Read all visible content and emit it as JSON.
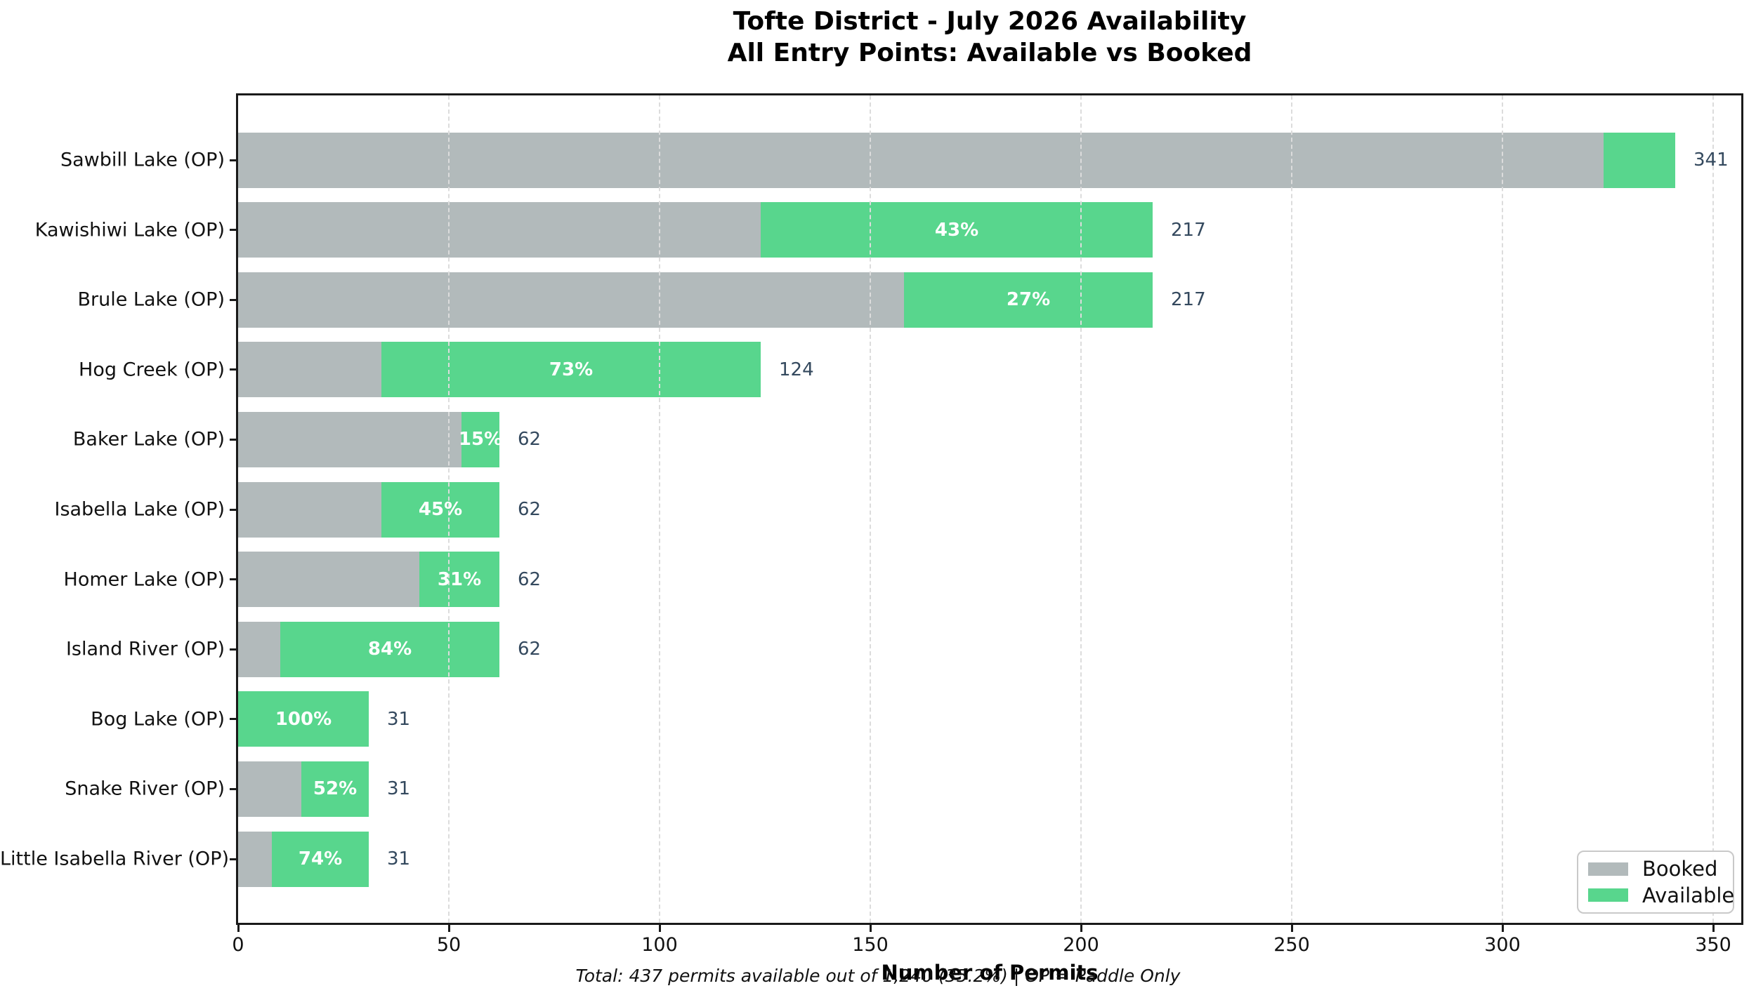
{
  "chart_data": {
    "type": "bar",
    "orientation": "horizontal-stacked",
    "title_line1": "Tofte District - July 2026 Availability",
    "title_line2": "All Entry Points: Available vs Booked",
    "xlabel": "Number of Permits",
    "footnote": "Total: 437 permits available out of 1,240 (35.2%) | OP = Paddle Only",
    "x_ticks": [
      0,
      50,
      100,
      150,
      200,
      250,
      300,
      350
    ],
    "xlim": [
      0,
      357
    ],
    "grid": "vertical-dashed",
    "legend_position": "lower-right",
    "legend": [
      {
        "label": "Booked",
        "color": "#b2babb"
      },
      {
        "label": "Available",
        "color": "#58d68d"
      }
    ],
    "colors": {
      "booked": "#b2babb",
      "available": "#58d68d",
      "total_label": "#34495e",
      "pct_label": "#ffffff"
    },
    "entries": [
      {
        "label": "Sawbill Lake (OP)",
        "booked": 324,
        "available": 17,
        "total": 341,
        "pct_label": null
      },
      {
        "label": "Kawishiwi Lake (OP)",
        "booked": 124,
        "available": 93,
        "total": 217,
        "pct_label": "43%"
      },
      {
        "label": "Brule Lake (OP)",
        "booked": 158,
        "available": 59,
        "total": 217,
        "pct_label": "27%"
      },
      {
        "label": "Hog Creek (OP)",
        "booked": 34,
        "available": 90,
        "total": 124,
        "pct_label": "73%"
      },
      {
        "label": "Baker Lake (OP)",
        "booked": 53,
        "available": 9,
        "total": 62,
        "pct_label": "15%"
      },
      {
        "label": "Isabella Lake (OP)",
        "booked": 34,
        "available": 28,
        "total": 62,
        "pct_label": "45%"
      },
      {
        "label": "Homer Lake (OP)",
        "booked": 43,
        "available": 19,
        "total": 62,
        "pct_label": "31%"
      },
      {
        "label": "Island River (OP)",
        "booked": 10,
        "available": 52,
        "total": 62,
        "pct_label": "84%"
      },
      {
        "label": "Bog Lake (OP)",
        "booked": 0,
        "available": 31,
        "total": 31,
        "pct_label": "100%"
      },
      {
        "label": "Snake River (OP)",
        "booked": 15,
        "available": 16,
        "total": 31,
        "pct_label": "52%"
      },
      {
        "label": "Little Isabella River (OP)",
        "booked": 8,
        "available": 23,
        "total": 31,
        "pct_label": "74%"
      }
    ]
  }
}
